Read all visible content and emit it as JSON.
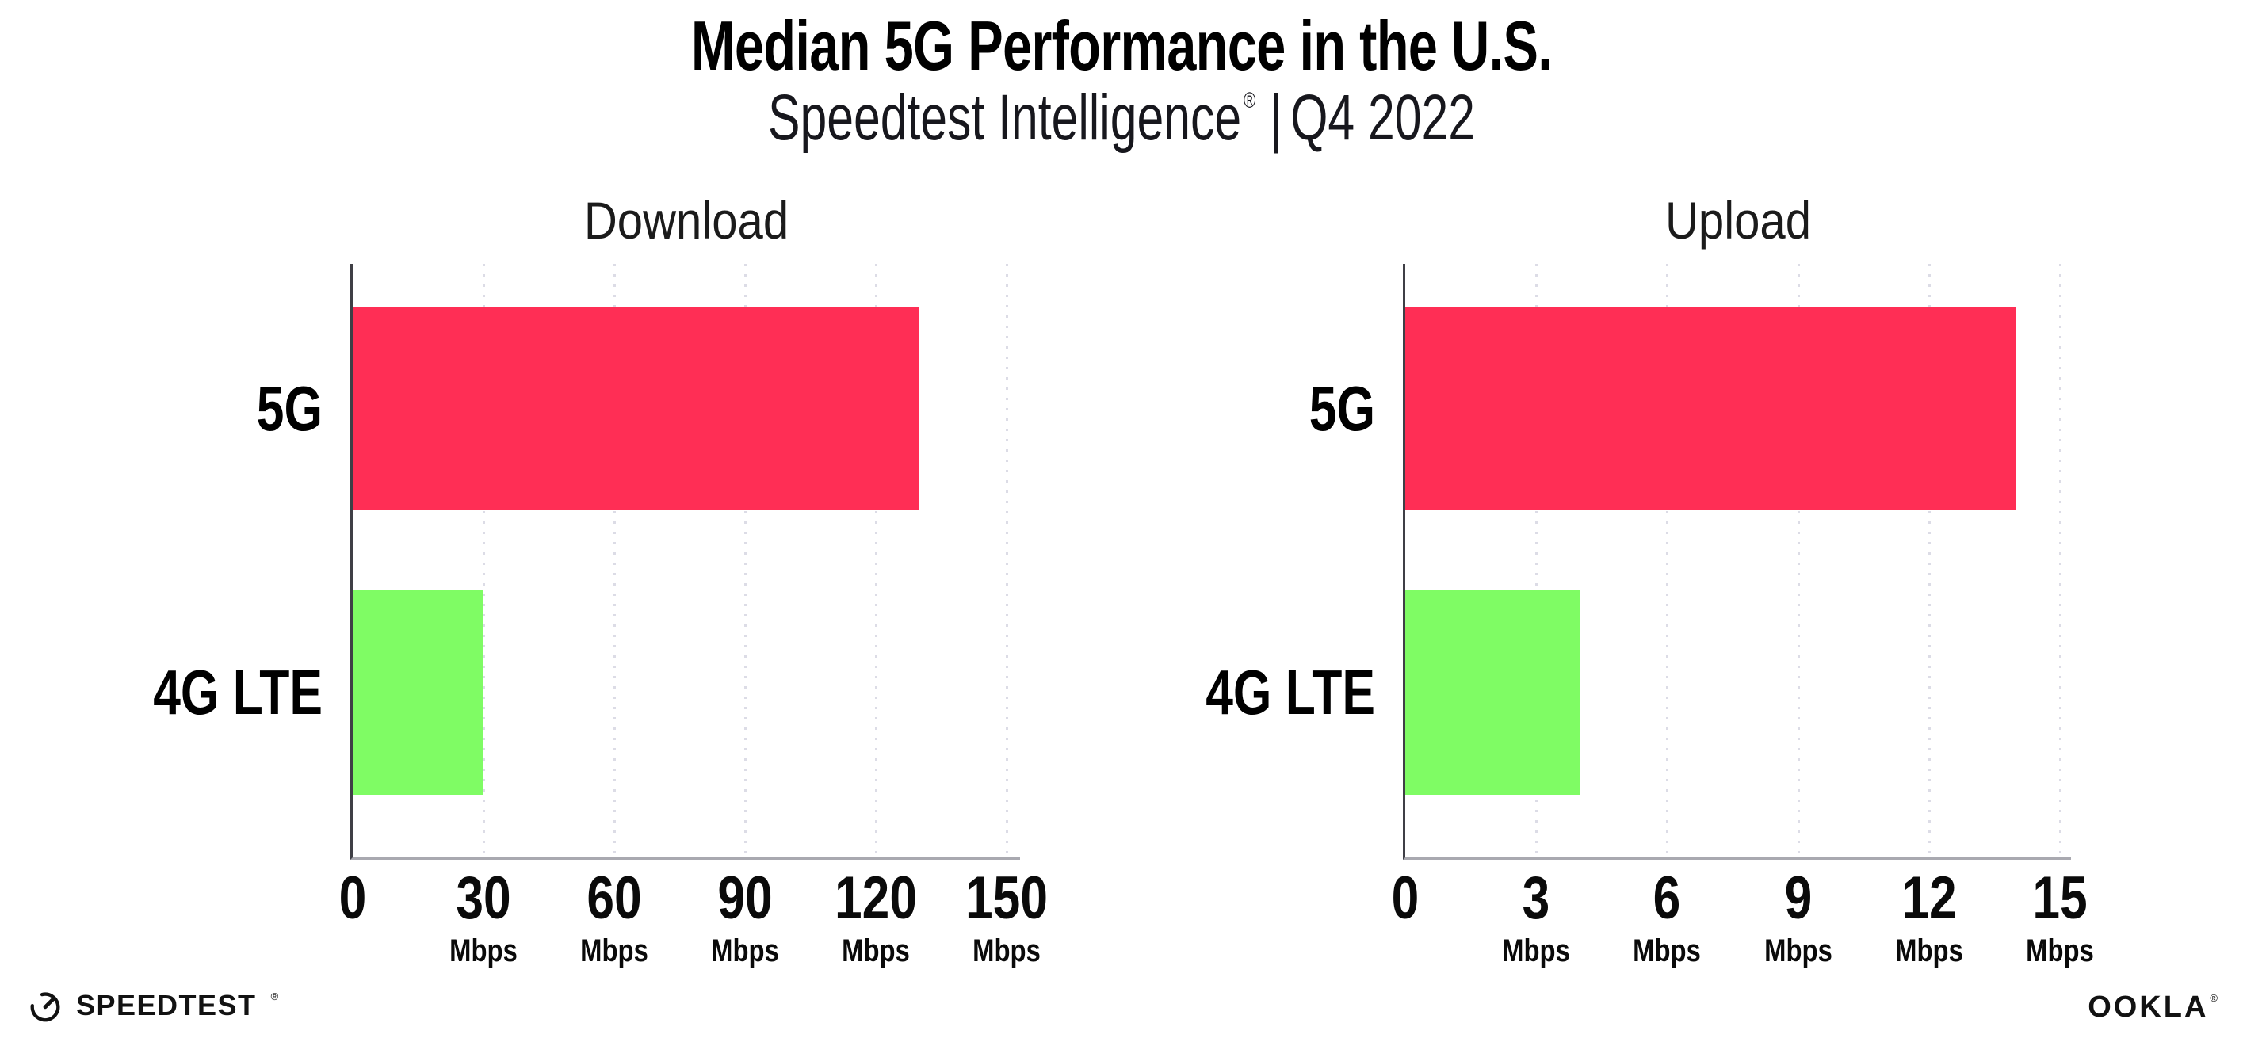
{
  "header": {
    "title": "Median 5G Performance in the U.S.",
    "subtitle_brand": "Speedtest Intelligence",
    "subtitle_trademark": "®",
    "subtitle_divider": "|",
    "subtitle_period": "Q4 2022"
  },
  "chart_data": [
    {
      "type": "bar",
      "orientation": "horizontal",
      "title": "Download",
      "categories": [
        "5G",
        "4G LTE"
      ],
      "values": [
        130,
        30
      ],
      "unit": "Mbps",
      "xticks": [
        0,
        30,
        60,
        90,
        120,
        150
      ],
      "xlim": [
        0,
        153
      ],
      "grid": "vertical-dotted",
      "legend": "none",
      "bar_colors": [
        "#FF2E55",
        "#7FFC64"
      ]
    },
    {
      "type": "bar",
      "orientation": "horizontal",
      "title": "Upload",
      "categories": [
        "5G",
        "4G LTE"
      ],
      "values": [
        14,
        4
      ],
      "unit": "Mbps",
      "xticks": [
        0,
        3,
        6,
        9,
        12,
        15
      ],
      "xlim": [
        0,
        15.25
      ],
      "grid": "vertical-dotted",
      "legend": "none",
      "bar_colors": [
        "#FF2E55",
        "#7FFC64"
      ]
    }
  ],
  "colors": {
    "bar_5g": "#FF2E55",
    "bar_4g_lte": "#7FFC64",
    "y_axis": "#3F3F46",
    "x_axis": "#A9A9B0",
    "gridline": "#DCDCE6",
    "background": "#FFFFFF",
    "text": "#000000"
  },
  "footer": {
    "speedtest_wordmark": "SPEEDTEST",
    "ookla_wordmark": "OOKLA",
    "registered_mark": "®"
  }
}
